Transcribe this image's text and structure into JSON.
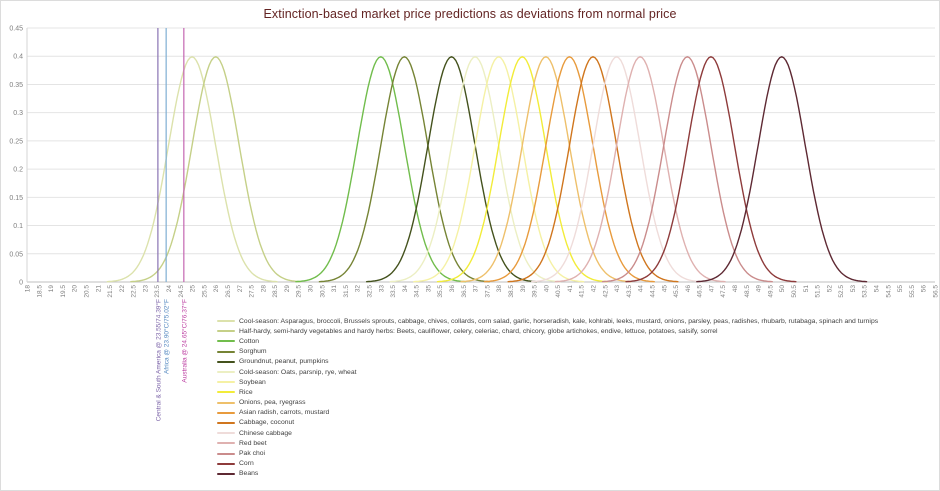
{
  "chart_data": {
    "type": "line",
    "title": "Extinction-based market price predictions as deviations from normal price",
    "title_color": "#632423",
    "xlabel": "",
    "ylabel": "",
    "xlim": [
      18,
      56.5
    ],
    "ylim": [
      0,
      0.45
    ],
    "grid": "horizontal",
    "legend_position": "bottom-left",
    "curve_model": "normal probability density, sigma = 1, peak = 0.3989 at the mean",
    "y_ticks": [
      "0",
      "0.05",
      "0.1",
      "0.15",
      "0.2",
      "0.25",
      "0.3",
      "0.35",
      "0.4",
      "0.45"
    ],
    "x_ticks": [
      "18",
      "18.5",
      "19",
      "19.5",
      "20",
      "20.5",
      "21",
      "21.5",
      "22",
      "22.5",
      "23",
      "23.5",
      "24",
      "24.5",
      "25",
      "25.5",
      "26",
      "26.5",
      "27",
      "27.5",
      "28",
      "28.5",
      "29",
      "29.5",
      "30",
      "30.5",
      "31",
      "31.5",
      "32",
      "32.5",
      "33",
      "33.5",
      "34",
      "34.5",
      "35",
      "35.5",
      "36",
      "36.5",
      "37",
      "37.5",
      "38",
      "38.5",
      "39",
      "39.5",
      "40",
      "40.5",
      "41",
      "41.5",
      "42",
      "42.5",
      "43",
      "43.5",
      "44",
      "44.5",
      "45",
      "45.5",
      "46",
      "46.5",
      "47",
      "47.5",
      "48",
      "48.5",
      "49",
      "49.5",
      "50",
      "50.5",
      "51",
      "51.5",
      "52",
      "52.5",
      "53",
      "53.5",
      "54",
      "54.5",
      "55",
      "55.5",
      "56",
      "56.5"
    ],
    "series": [
      {
        "name": "Cool-season: Asparagus, broccoli, Brussels sprouts, cabbage, chives, collards, corn salad, garlic, horseradish, kale, kohlrabi, leeks, mustard, onions, parsley, peas, radishes, rhubarb, rutabaga, spinach and turnips",
        "mean": 25,
        "sigma": 1,
        "peak": 0.3989,
        "color": "#dce2ac"
      },
      {
        "name": "Half-hardy, semi-hardy vegetables and hardy herbs: Beets, cauliflower, celery, celeriac, chard, chicory, globe artichokes, endive, lettuce, potatoes, salsify, sorrel",
        "mean": 26,
        "sigma": 1,
        "peak": 0.3989,
        "color": "#c5d088"
      },
      {
        "name": "Cotton",
        "mean": 33,
        "sigma": 1,
        "peak": 0.3989,
        "color": "#71bd4c"
      },
      {
        "name": "Sorghum",
        "mean": 34,
        "sigma": 1,
        "peak": 0.3989,
        "color": "#768435"
      },
      {
        "name": "Groundnut, peanut, pumpkins",
        "mean": 36,
        "sigma": 1,
        "peak": 0.3989,
        "color": "#44521d"
      },
      {
        "name": "Cold-season: Oats, parsnip, rye, wheat",
        "mean": 37,
        "sigma": 1,
        "peak": 0.3989,
        "color": "#ecefc3"
      },
      {
        "name": "Soybean",
        "mean": 38,
        "sigma": 1,
        "peak": 0.3989,
        "color": "#f5f1a4"
      },
      {
        "name": "Rice",
        "mean": 39,
        "sigma": 1,
        "peak": 0.3989,
        "color": "#f2ec39"
      },
      {
        "name": "Onions, pea, ryegrass",
        "mean": 40,
        "sigma": 1,
        "peak": 0.3989,
        "color": "#eec06b"
      },
      {
        "name": "Asian radish, carrots, mustard",
        "mean": 41,
        "sigma": 1,
        "peak": 0.3989,
        "color": "#e89b3d"
      },
      {
        "name": "Cabbage, coconut",
        "mean": 42,
        "sigma": 1,
        "peak": 0.3989,
        "color": "#d0761e"
      },
      {
        "name": "Chinese cabbage",
        "mean": 43,
        "sigma": 1,
        "peak": 0.3989,
        "color": "#efdcda"
      },
      {
        "name": "Red beet",
        "mean": 44,
        "sigma": 1,
        "peak": 0.3989,
        "color": "#dfb1b0"
      },
      {
        "name": "Pak choi",
        "mean": 46,
        "sigma": 1,
        "peak": 0.3989,
        "color": "#ca8c8c"
      },
      {
        "name": "Corn",
        "mean": 47,
        "sigma": 1,
        "peak": 0.3989,
        "color": "#8e3b3b"
      },
      {
        "name": "Beans",
        "mean": 50,
        "sigma": 1,
        "peak": 0.3989,
        "color": "#5e2933"
      }
    ],
    "vlines": [
      {
        "label": "Central & South America @ 23.55/74.39°F",
        "x": 23.55,
        "color": "#8973b3",
        "text_color": "#7c64a8"
      },
      {
        "label": "Africa @ 23.90°C/75.02°F",
        "x": 23.9,
        "color": "#7fafd3",
        "text_color": "#5588c0"
      },
      {
        "label": "Australia @ 24.65°C/76.37°F",
        "x": 24.65,
        "color": "#c466b1",
        "text_color": "#bb3ba0"
      }
    ]
  }
}
